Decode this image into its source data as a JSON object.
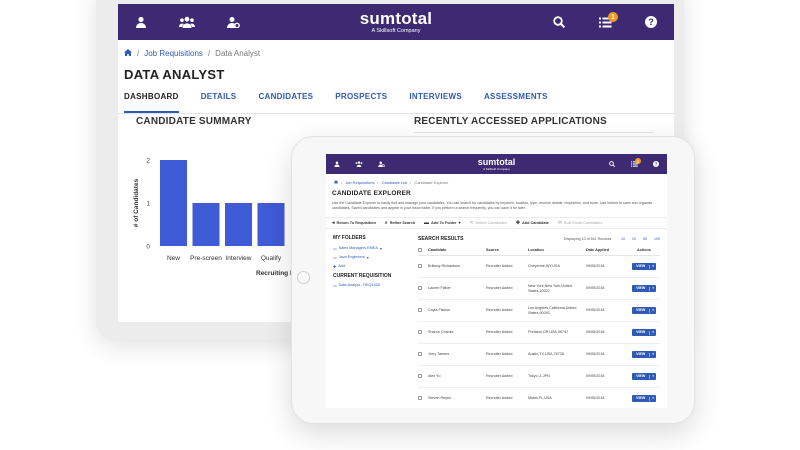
{
  "back_app": {
    "logo": {
      "brand": "sumtotal",
      "tagline": "A Skillsoft Company"
    },
    "notification_count": "1",
    "breadcrumb": {
      "current": "Data Analyst",
      "parent": "Job Requisitions"
    },
    "title": "DATA ANALYST",
    "tabs": [
      "DASHBOARD",
      "DETAILS",
      "CANDIDATES",
      "PROSPECTS",
      "INTERVIEWS",
      "ASSESSMENTS"
    ],
    "active_tab": "DASHBOARD",
    "candidate_summary_heading": "CANDIDATE SUMMARY",
    "recent_apps_heading": "RECENTLY ACCESSED APPLICATIONS"
  },
  "chart_data": {
    "type": "bar",
    "title": "CANDIDATE SUMMARY",
    "categories": [
      "New",
      "Pre-screen",
      "Interview",
      "Qualify"
    ],
    "values": [
      2,
      1,
      1,
      1
    ],
    "ylabel": "# of Candidates",
    "xlabel": "Recruiting Pha",
    "ylim": [
      0,
      2
    ],
    "yticks": [
      0,
      1,
      2
    ],
    "bar_color": "#3f5bd6",
    "grid": false
  },
  "front_app": {
    "logo": {
      "brand": "sumtotal",
      "tagline": "A Skillsoft Company"
    },
    "notification_count": "1",
    "breadcrumb": {
      "parent": "Job Requisitions",
      "middle": "Candidate List",
      "current": "Candidate Explorer"
    },
    "title": "CANDIDATE EXPLORER",
    "intro": "Use the Candidate Explorer to easily find and manage your candidates. You can search for candidates by keyword, location, type, resume details, requisition, and more. Use folders to save and organize candidates. Saved candidates and appear in your inbox folder. If you perform a search frequently, you can save it for later.",
    "toolbar": {
      "return": "Return To Requisition",
      "refine": "Refine Search",
      "add_folder": "Add To Folder",
      "delete": "Delete Candidates",
      "add_candidate": "Add Candidate",
      "bulk_email": "Bulk Email Candidates"
    },
    "my_folders_heading": "MY FOLDERS",
    "folders": [
      "Sales Managers EMEA",
      "Java Engineers"
    ],
    "add_label": "Add",
    "current_req_heading": "CURRENT REQUISITION",
    "current_req": "Data Analyst - REQ1926",
    "search_results_heading": "SEARCH RESULTS",
    "displaying": "Displaying 10 of 641 Records",
    "page_sizes": [
      "10",
      "20",
      "50",
      "100"
    ],
    "columns": {
      "candidate": "Candidate",
      "source": "Source",
      "location": "Location",
      "date": "Date Applied",
      "actions": "Actions"
    },
    "view_label": "VIEW",
    "rows": [
      {
        "name": "Brittany Richardson",
        "source": "Recruiter Added",
        "location": "Cheyenne,WY,USA",
        "date": "09/05/2018"
      },
      {
        "name": "Lauren Fisher",
        "source": "Recruiter Added",
        "location": "New York,New York,United States,10022",
        "date": "09/05/2018"
      },
      {
        "name": "Cayla Fiskion",
        "source": "Recruiter Added",
        "location": "Los Angeles,California,United States,90093",
        "date": "09/05/2018"
      },
      {
        "name": "Sharon Chanks",
        "source": "Recruiter Added",
        "location": "Portland,OR,USA,56797",
        "date": "09/05/2018"
      },
      {
        "name": "Jerry Tamers",
        "source": "Recruiter Added",
        "location": "Austin,TX,USA,78738",
        "date": "09/05/2018"
      },
      {
        "name": "Alex Yu",
        "source": "Recruiter Added",
        "location": "Tokyo,,1,JPN",
        "date": "09/05/2018"
      },
      {
        "name": "Steven Reyes",
        "source": "Recruiter Added",
        "location": "Miami,FL,USA",
        "date": "09/05/2018"
      }
    ]
  },
  "colors": {
    "brand": "#3d2a73",
    "link": "#2f5bb5",
    "badge": "#f39a1e"
  }
}
